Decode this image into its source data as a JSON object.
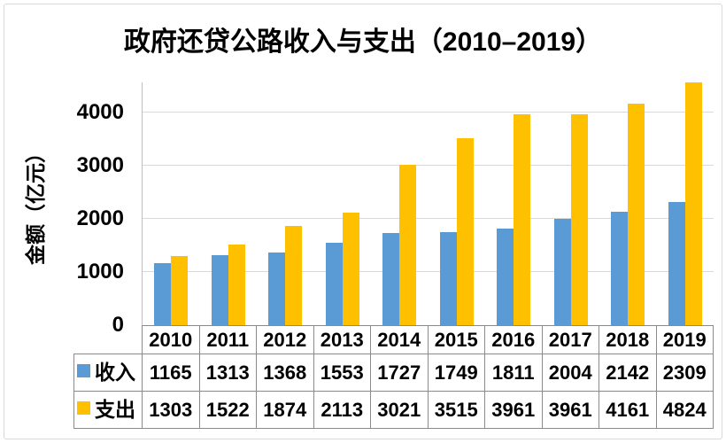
{
  "title": "政府还贷公路收入与支出（2010–2019）",
  "y_axis": {
    "label": "金额（亿元）",
    "ticks": [
      0,
      1000,
      2000,
      3000,
      4000
    ]
  },
  "colors": {
    "income": "#5B9BD5",
    "expense": "#FFC000",
    "gridline": "#D9D9D9",
    "axis_line": "#BFBFBF",
    "table_border": "#8A8A8A",
    "chart_border": "#D9D9D9",
    "text": "#000000"
  },
  "chart_data": {
    "type": "bar",
    "title": "政府还贷公路收入与支出（2010–2019）",
    "xlabel": "",
    "ylabel": "金额（亿元）",
    "ylim": [
      0,
      4567
    ],
    "y_ticks": [
      0,
      1000,
      2000,
      3000,
      4000
    ],
    "gridlines": [
      1000,
      2000,
      3000,
      4000
    ],
    "grid": true,
    "legend_position": "data-table-left",
    "data_table_attached": true,
    "categories": [
      "2010",
      "2011",
      "2012",
      "2013",
      "2014",
      "2015",
      "2016",
      "2017",
      "2018",
      "2019"
    ],
    "series": [
      {
        "key": "income",
        "name": "收入",
        "color": "#5B9BD5",
        "values": [
          1165,
          1313,
          1368,
          1553,
          1727,
          1749,
          1811,
          2004,
          2142,
          2309
        ]
      },
      {
        "key": "expense",
        "name": "支出",
        "color": "#FFC000",
        "values": [
          1303,
          1522,
          1874,
          2113,
          3021,
          3515,
          3961,
          3961,
          4161,
          4824
        ]
      }
    ]
  }
}
